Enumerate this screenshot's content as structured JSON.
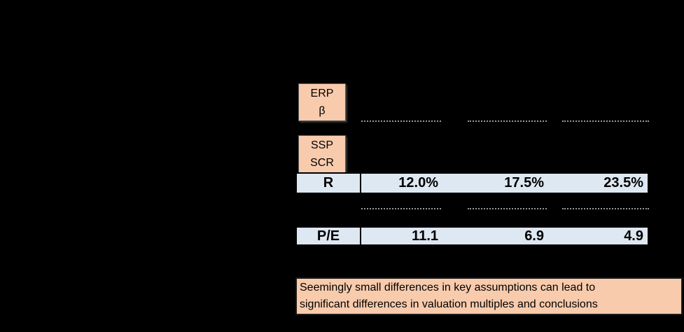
{
  "assumptions": {
    "erp_box": {
      "line1": "ERP",
      "line2": "β"
    },
    "ssp_box": {
      "line1": "SSP",
      "line2": "SCR"
    }
  },
  "table": {
    "rows": [
      {
        "label": "R",
        "values": [
          "12.0%",
          "17.5%",
          "23.5%"
        ]
      },
      {
        "label": "P/E",
        "values": [
          "11.1",
          "6.9",
          "4.9"
        ]
      }
    ]
  },
  "callout": {
    "line1": "Seemingly small differences in key assumptions can lead to",
    "line2": "significant differences in valuation multiples and conclusions"
  },
  "colors": {
    "background": "#000000",
    "assumption_box_fill": "#F8CBAD",
    "table_row_fill": "#DEE8F2",
    "dotted_line": "#999999",
    "text": "#000000"
  }
}
